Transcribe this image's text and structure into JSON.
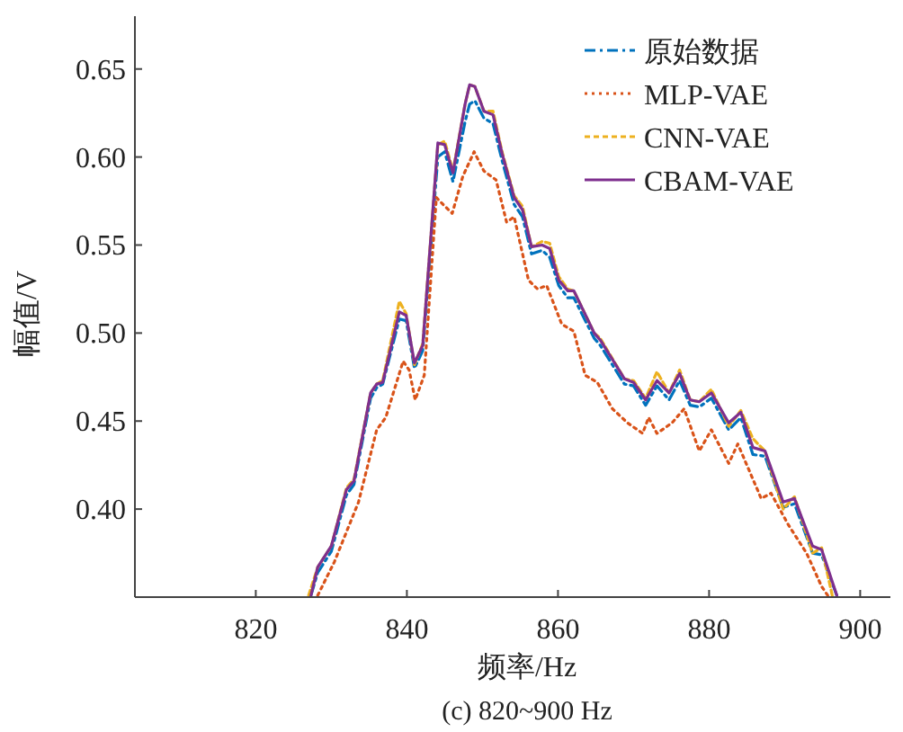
{
  "chart_data": {
    "type": "line",
    "title": "(c) 820~900 Hz",
    "xlabel": "频率/Hz",
    "ylabel": "幅值/V",
    "xlim": [
      804,
      904
    ],
    "ylim": [
      0.35,
      0.68
    ],
    "xticks": [
      820,
      840,
      860,
      880,
      900
    ],
    "yticks": [
      {
        "value": 0.4,
        "label": "0.40"
      },
      {
        "value": 0.45,
        "label": "0.45"
      },
      {
        "value": 0.5,
        "label": "0.50"
      },
      {
        "value": 0.55,
        "label": "0.55"
      },
      {
        "value": 0.6,
        "label": "0.60"
      },
      {
        "value": 0.65,
        "label": "0.65"
      }
    ],
    "legend": "top right",
    "grid": false,
    "series": [
      {
        "name": "原始数据",
        "color": "#0072bd",
        "line_style": "dashdot",
        "x": [
          827.3,
          828.2,
          830.0,
          832.0,
          833.0,
          835.2,
          836.0,
          836.8,
          839.0,
          839.9,
          841.0,
          842.1,
          844.1,
          845.0,
          846.1,
          847.7,
          848.3,
          849.0,
          850.2,
          851.4,
          852.6,
          854.2,
          855.3,
          856.5,
          857.9,
          858.9,
          860.1,
          861.3,
          862.1,
          864.8,
          865.6,
          868.8,
          870.0,
          871.6,
          873.1,
          874.7,
          876.1,
          877.5,
          878.7,
          880.3,
          882.6,
          884.2,
          885.8,
          887.4,
          889.8,
          891.3,
          893.7,
          894.9,
          896.9
        ],
        "values": [
          0.351,
          0.364,
          0.376,
          0.408,
          0.414,
          0.463,
          0.469,
          0.471,
          0.508,
          0.507,
          0.48,
          0.49,
          0.6,
          0.603,
          0.586,
          0.62,
          0.63,
          0.632,
          0.622,
          0.619,
          0.598,
          0.573,
          0.566,
          0.545,
          0.547,
          0.543,
          0.527,
          0.52,
          0.52,
          0.497,
          0.493,
          0.471,
          0.47,
          0.459,
          0.47,
          0.462,
          0.473,
          0.459,
          0.458,
          0.463,
          0.445,
          0.452,
          0.431,
          0.43,
          0.401,
          0.403,
          0.375,
          0.374,
          0.351
        ]
      },
      {
        "name": "MLP-VAE",
        "color": "#d95319",
        "line_style": "dotted",
        "x": [
          828.2,
          830.4,
          833.6,
          836.0,
          837.2,
          839.5,
          840.3,
          841.1,
          842.3,
          843.9,
          844.8,
          846.0,
          847.4,
          848.9,
          850.2,
          851.8,
          853.2,
          854.2,
          856.1,
          857.3,
          858.5,
          860.5,
          862.1,
          863.6,
          865.2,
          867.2,
          869.2,
          871.2,
          872.0,
          873.1,
          875.1,
          876.7,
          878.7,
          880.3,
          882.6,
          883.8,
          886.9,
          888.2,
          890.5,
          892.9,
          894.9,
          895.7
        ],
        "values": [
          0.351,
          0.37,
          0.404,
          0.445,
          0.452,
          0.484,
          0.479,
          0.462,
          0.476,
          0.577,
          0.573,
          0.568,
          0.589,
          0.603,
          0.592,
          0.587,
          0.563,
          0.566,
          0.53,
          0.525,
          0.527,
          0.505,
          0.501,
          0.476,
          0.472,
          0.457,
          0.449,
          0.443,
          0.452,
          0.443,
          0.449,
          0.457,
          0.433,
          0.445,
          0.426,
          0.437,
          0.406,
          0.409,
          0.391,
          0.375,
          0.356,
          0.351
        ]
      },
      {
        "name": "CNN-VAE",
        "color": "#edb120",
        "line_style": "dashed",
        "x": [
          827.0,
          828.2,
          830.0,
          832.0,
          833.0,
          835.2,
          836.0,
          836.8,
          839.0,
          839.9,
          841.0,
          842.1,
          844.1,
          845.0,
          846.1,
          847.7,
          848.3,
          849.0,
          850.2,
          851.4,
          852.6,
          854.2,
          855.3,
          856.5,
          857.9,
          858.9,
          860.1,
          861.3,
          862.1,
          864.8,
          865.6,
          868.8,
          870.0,
          871.6,
          873.1,
          874.7,
          876.1,
          877.5,
          878.7,
          880.3,
          882.6,
          884.2,
          885.8,
          887.4,
          889.8,
          891.3,
          893.7,
          894.9,
          896.3
        ],
        "values": [
          0.351,
          0.367,
          0.379,
          0.412,
          0.417,
          0.466,
          0.471,
          0.473,
          0.518,
          0.511,
          0.482,
          0.494,
          0.607,
          0.609,
          0.592,
          0.63,
          0.641,
          0.64,
          0.626,
          0.626,
          0.603,
          0.578,
          0.572,
          0.549,
          0.552,
          0.551,
          0.532,
          0.525,
          0.524,
          0.5,
          0.497,
          0.474,
          0.473,
          0.463,
          0.478,
          0.466,
          0.479,
          0.462,
          0.461,
          0.468,
          0.447,
          0.456,
          0.44,
          0.433,
          0.4,
          0.407,
          0.375,
          0.378,
          0.351
        ]
      },
      {
        "name": "CBAM-VAE",
        "color": "#7e2f8e",
        "line_style": "solid",
        "x": [
          827.3,
          828.2,
          830.0,
          832.0,
          833.0,
          835.2,
          836.0,
          836.8,
          839.0,
          839.9,
          841.0,
          842.1,
          844.1,
          845.0,
          846.1,
          847.7,
          848.3,
          849.0,
          850.2,
          851.4,
          852.6,
          854.2,
          855.3,
          856.5,
          857.9,
          858.9,
          860.1,
          861.3,
          862.1,
          864.8,
          865.6,
          868.8,
          870.0,
          871.6,
          873.1,
          874.7,
          876.1,
          877.5,
          878.7,
          880.3,
          882.6,
          884.2,
          885.8,
          887.4,
          889.8,
          891.3,
          893.7,
          894.9,
          896.9
        ],
        "values": [
          0.351,
          0.367,
          0.379,
          0.411,
          0.416,
          0.466,
          0.471,
          0.472,
          0.512,
          0.51,
          0.483,
          0.493,
          0.608,
          0.607,
          0.591,
          0.63,
          0.641,
          0.64,
          0.626,
          0.624,
          0.602,
          0.577,
          0.57,
          0.549,
          0.55,
          0.548,
          0.53,
          0.524,
          0.524,
          0.5,
          0.496,
          0.474,
          0.472,
          0.462,
          0.473,
          0.466,
          0.477,
          0.462,
          0.461,
          0.466,
          0.449,
          0.455,
          0.435,
          0.433,
          0.404,
          0.406,
          0.379,
          0.377,
          0.351
        ]
      }
    ]
  }
}
